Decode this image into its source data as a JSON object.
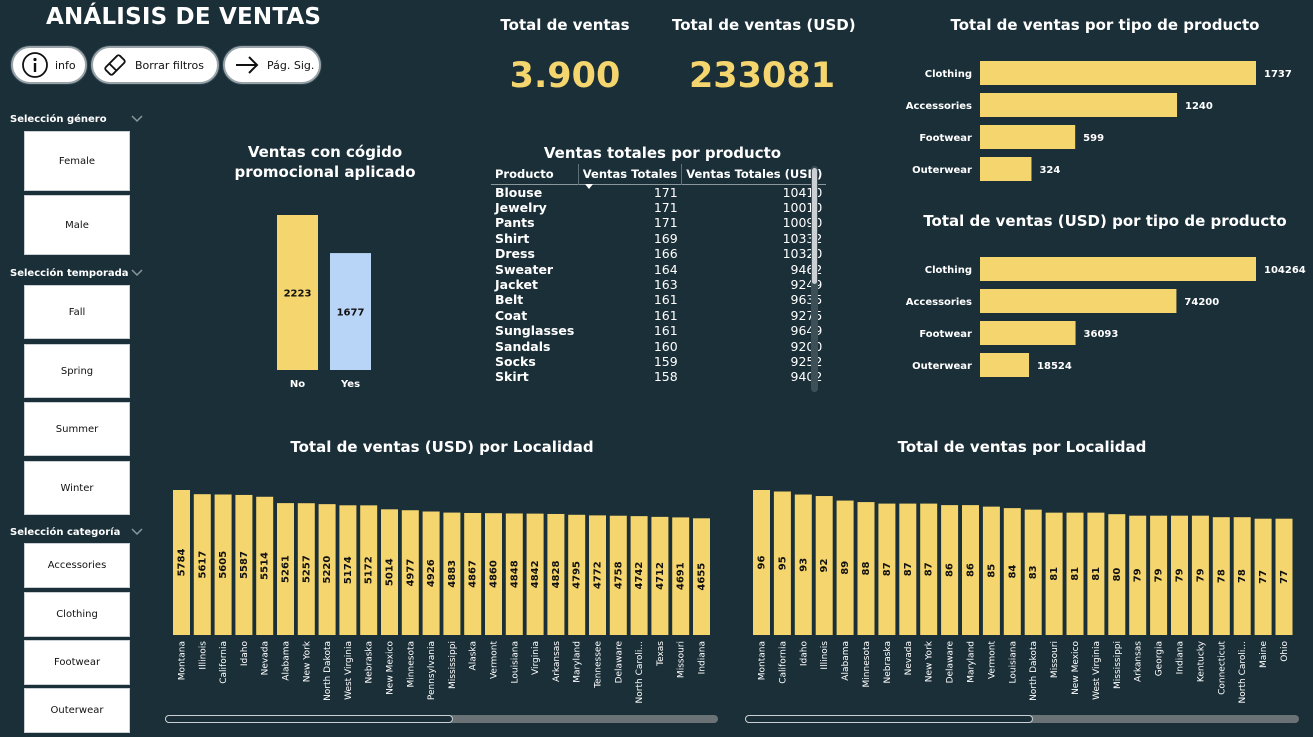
{
  "header": {
    "title": "ANÁLISIS DE VENTAS",
    "buttons": [
      {
        "label": "info",
        "icon": "info-icon"
      },
      {
        "label": "Borrar filtros",
        "icon": "eraser-icon"
      },
      {
        "label": "Pág. Sig.",
        "icon": "arrow-right-icon"
      }
    ]
  },
  "slicers": {
    "genero": {
      "title": "Selección género",
      "options": [
        "Female",
        "Male"
      ]
    },
    "temporada": {
      "title": "Selección temporada",
      "options": [
        "Fall",
        "Spring",
        "Summer",
        "Winter"
      ]
    },
    "categoria": {
      "title": "Selección categoría",
      "options": [
        "Accessories",
        "Clothing",
        "Footwear",
        "Outerwear"
      ]
    }
  },
  "kpis": {
    "total_ventas": {
      "title": "Total de ventas",
      "value": "3.900"
    },
    "total_ventas_usd": {
      "title": "Total de ventas (USD)",
      "value": "233081"
    }
  },
  "colors": {
    "background": "#1b2f38",
    "accent": "#f5d56d",
    "promo_yes": "#b8d4f7",
    "text": "#ffffff"
  },
  "product_table": {
    "title": "Ventas totales por producto",
    "columns": [
      "Producto",
      "Ventas Totales",
      "Ventas Totales (USD)"
    ],
    "sort_column": "Ventas Totales",
    "rows": [
      [
        "Blouse",
        "171",
        "10410"
      ],
      [
        "Jewelry",
        "171",
        "10010"
      ],
      [
        "Pants",
        "171",
        "10090"
      ],
      [
        "Shirt",
        "169",
        "10332"
      ],
      [
        "Dress",
        "166",
        "10320"
      ],
      [
        "Sweater",
        "164",
        "9462"
      ],
      [
        "Jacket",
        "163",
        "9249"
      ],
      [
        "Belt",
        "161",
        "9635"
      ],
      [
        "Coat",
        "161",
        "9275"
      ],
      [
        "Sunglasses",
        "161",
        "9649"
      ],
      [
        "Sandals",
        "160",
        "9200"
      ],
      [
        "Socks",
        "159",
        "9252"
      ],
      [
        "Skirt",
        "158",
        "9402"
      ]
    ]
  },
  "chart_data": [
    {
      "id": "promo",
      "type": "bar",
      "title": "Ventas con cógido promocional aplicado",
      "categories": [
        "No",
        "Yes"
      ],
      "values": [
        2223,
        1677
      ],
      "colors": [
        "#f5d56d",
        "#b8d4f7"
      ]
    },
    {
      "id": "tipo_count",
      "type": "bar",
      "orientation": "horizontal",
      "title": "Total de ventas por tipo de producto",
      "categories": [
        "Clothing",
        "Accessories",
        "Footwear",
        "Outerwear"
      ],
      "values": [
        1737,
        1240,
        599,
        324
      ]
    },
    {
      "id": "tipo_usd",
      "type": "bar",
      "orientation": "horizontal",
      "title": "Total de ventas (USD) por tipo de producto",
      "categories": [
        "Clothing",
        "Accessories",
        "Footwear",
        "Outerwear"
      ],
      "values": [
        104264,
        74200,
        36093,
        18524
      ]
    },
    {
      "id": "loc_usd",
      "type": "bar",
      "title": "Total de ventas (USD) por Localidad",
      "categories": [
        "Montana",
        "Illinois",
        "California",
        "Idaho",
        "Nevada",
        "Alabama",
        "New York",
        "North Dakota",
        "West Virginia",
        "Nebraska",
        "New Mexico",
        "Minnesota",
        "Pennsylvania",
        "Mississippi",
        "Alaska",
        "Vermont",
        "Louisiana",
        "Virginia",
        "Arkansas",
        "Maryland",
        "Tennessee",
        "Delaware",
        "North Caroli...",
        "Texas",
        "Missouri",
        "Indiana"
      ],
      "values": [
        5784,
        5617,
        5605,
        5587,
        5514,
        5261,
        5257,
        5220,
        5174,
        5172,
        5014,
        4977,
        4926,
        4883,
        4867,
        4860,
        4848,
        4842,
        4828,
        4795,
        4772,
        4758,
        4742,
        4712,
        4691,
        4655
      ]
    },
    {
      "id": "loc_count",
      "type": "bar",
      "title": "Total de ventas por Localidad",
      "categories": [
        "Montana",
        "California",
        "Idaho",
        "Illinois",
        "Alabama",
        "Minnesota",
        "Nebraska",
        "Nevada",
        "New York",
        "Delaware",
        "Maryland",
        "Vermont",
        "Louisiana",
        "North Dakota",
        "Missouri",
        "New Mexico",
        "West Virginia",
        "Mississippi",
        "Arkansas",
        "Georgia",
        "Indiana",
        "Kentucky",
        "Connecticut",
        "North Caroli...",
        "Maine",
        "Ohio"
      ],
      "values": [
        96,
        95,
        93,
        92,
        89,
        88,
        87,
        87,
        87,
        86,
        86,
        85,
        84,
        83,
        81,
        81,
        81,
        80,
        79,
        79,
        79,
        79,
        78,
        78,
        77,
        77
      ]
    }
  ]
}
